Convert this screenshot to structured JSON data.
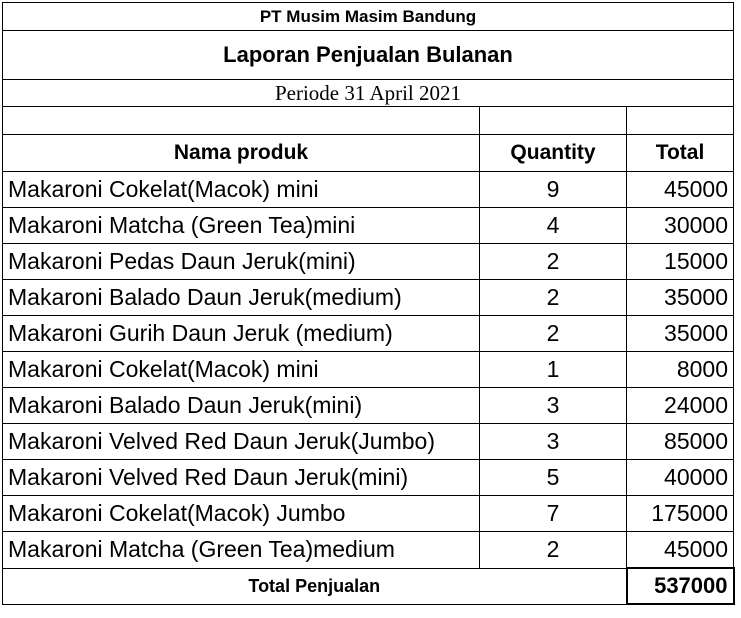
{
  "company": "PT Musim Masim Bandung",
  "title": "Laporan Penjualan Bulanan",
  "period": "Periode 31 April 2021",
  "headers": {
    "product": "Nama produk",
    "quantity": "Quantity",
    "total": "Total"
  },
  "items": [
    {
      "name": "Makaroni Cokelat(Macok) mini",
      "quantity": "9",
      "total": "45000"
    },
    {
      "name": "Makaroni Matcha (Green Tea)mini",
      "quantity": "4",
      "total": "30000"
    },
    {
      "name": "Makaroni Pedas Daun Jeruk(mini)",
      "quantity": "2",
      "total": "15000"
    },
    {
      "name": "Makaroni Balado Daun Jeruk(medium)",
      "quantity": "2",
      "total": "35000"
    },
    {
      "name": "Makaroni Gurih Daun Jeruk (medium)",
      "quantity": "2",
      "total": "35000"
    },
    {
      "name": "Makaroni Cokelat(Macok) mini",
      "quantity": "1",
      "total": "8000"
    },
    {
      "name": "Makaroni Balado Daun Jeruk(mini)",
      "quantity": "3",
      "total": "24000"
    },
    {
      "name": "Makaroni Velved Red Daun Jeruk(Jumbo)",
      "quantity": "3",
      "total": "85000"
    },
    {
      "name": "Makaroni Velved Red Daun Jeruk(mini)",
      "quantity": "5",
      "total": "40000"
    },
    {
      "name": "Makaroni Cokelat(Macok) Jumbo",
      "quantity": "7",
      "total": "175000"
    },
    {
      "name": "Makaroni Matcha (Green Tea)medium",
      "quantity": "2",
      "total": "45000"
    }
  ],
  "summary": {
    "label": "Total Penjualan",
    "value": "537000"
  }
}
